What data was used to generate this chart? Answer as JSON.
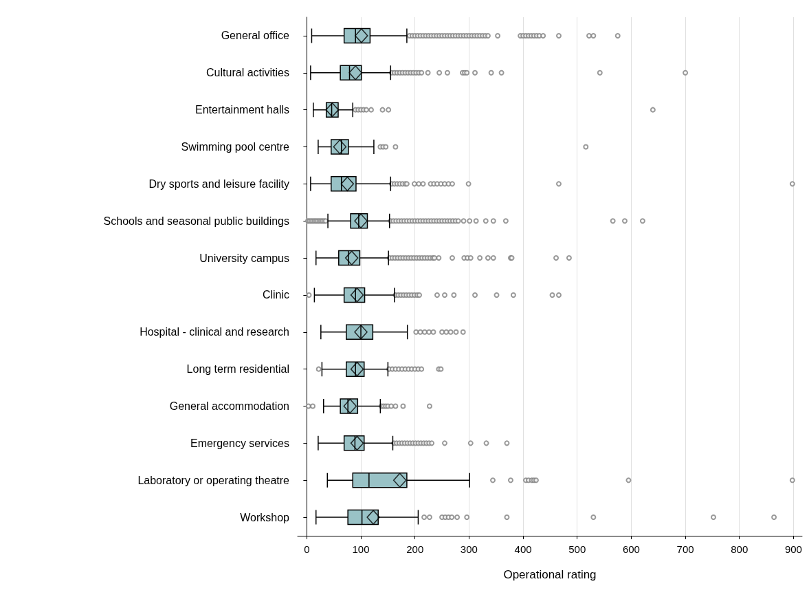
{
  "chart_data": {
    "type": "box",
    "orientation": "horizontal",
    "xlabel": "Operational rating",
    "color": "#99c2c6",
    "grid": "x",
    "xlim": [
      -17,
      916
    ],
    "xticks": [
      0,
      100,
      200,
      300,
      400,
      500,
      600,
      700,
      800,
      900
    ],
    "categories": [
      "General office",
      "Cultural activities",
      "Entertainment halls",
      "Swimming pool centre",
      "Dry sports and leisure facility",
      "Schools and seasonal public buildings",
      "University campus",
      "Clinic",
      "Hospital - clinical and research",
      "Long term residential",
      "General accommodation",
      "Emergency services",
      "Laboratory or operating theatre",
      "Workshop"
    ],
    "boxes": [
      {
        "low": 9,
        "q1": 69,
        "median": 90,
        "q3": 117,
        "high": 185,
        "mean": 101,
        "outliers": [
          190,
          195,
          200,
          205,
          210,
          215,
          220,
          225,
          230,
          235,
          240,
          245,
          250,
          255,
          260,
          265,
          270,
          275,
          280,
          285,
          290,
          295,
          300,
          305,
          310,
          315,
          320,
          325,
          330,
          335,
          353,
          395,
          400,
          405,
          410,
          415,
          420,
          425,
          430,
          437,
          466,
          522,
          530,
          575
        ]
      },
      {
        "low": 7,
        "q1": 62,
        "median": 79,
        "q3": 101,
        "high": 155,
        "mean": 90,
        "outliers": [
          157,
          162,
          167,
          172,
          177,
          182,
          187,
          192,
          197,
          202,
          207,
          212,
          224,
          245,
          260,
          288,
          292,
          296,
          311,
          341,
          360,
          542,
          700
        ]
      },
      {
        "low": 12,
        "q1": 36,
        "median": 46,
        "q3": 58,
        "high": 85,
        "mean": 47,
        "outliers": [
          90,
          95,
          100,
          105,
          110,
          119,
          140,
          151,
          640
        ]
      },
      {
        "low": 21,
        "q1": 45,
        "median": 64,
        "q3": 77,
        "high": 124,
        "mean": 61,
        "outliers": [
          136,
          141,
          146,
          164,
          516
        ]
      },
      {
        "low": 7,
        "q1": 45,
        "median": 64,
        "q3": 91,
        "high": 155,
        "mean": 75,
        "outliers": [
          157,
          162,
          167,
          172,
          177,
          182,
          185,
          199,
          207,
          215,
          229,
          235,
          241,
          248,
          255,
          262,
          269,
          299,
          466,
          898
        ]
      },
      {
        "low": 39,
        "q1": 81,
        "median": 96,
        "q3": 112,
        "high": 153,
        "mean": 100,
        "outliers": [
          2,
          5,
          8,
          11,
          14,
          17,
          20,
          23,
          26,
          29,
          32,
          35,
          155,
          160,
          165,
          170,
          175,
          180,
          185,
          190,
          195,
          200,
          205,
          210,
          215,
          220,
          225,
          230,
          235,
          240,
          245,
          250,
          255,
          260,
          265,
          270,
          275,
          280,
          290,
          301,
          313,
          331,
          345,
          368,
          566,
          588,
          621
        ]
      },
      {
        "low": 17,
        "q1": 59,
        "median": 77,
        "q3": 98,
        "high": 151,
        "mean": 83,
        "outliers": [
          153,
          158,
          163,
          168,
          173,
          178,
          183,
          188,
          193,
          198,
          203,
          208,
          213,
          218,
          223,
          228,
          233,
          236,
          244,
          269,
          291,
          297,
          303,
          320,
          335,
          345,
          377,
          379,
          461,
          485
        ]
      },
      {
        "low": 14,
        "q1": 69,
        "median": 90,
        "q3": 107,
        "high": 162,
        "mean": 93,
        "outliers": [
          4,
          164,
          169,
          174,
          179,
          184,
          189,
          194,
          199,
          204,
          208,
          241,
          255,
          272,
          311,
          351,
          382,
          454,
          466
        ]
      },
      {
        "low": 26,
        "q1": 73,
        "median": 100,
        "q3": 122,
        "high": 186,
        "mean": 100,
        "outliers": [
          202,
          210,
          218,
          226,
          234,
          250,
          258,
          266,
          276,
          289
        ]
      },
      {
        "low": 28,
        "q1": 73,
        "median": 90,
        "q3": 106,
        "high": 150,
        "mean": 93,
        "outliers": [
          22,
          152,
          158,
          164,
          170,
          176,
          182,
          188,
          194,
          200,
          206,
          212,
          244,
          248
        ]
      },
      {
        "low": 31,
        "q1": 62,
        "median": 76,
        "q3": 94,
        "high": 136,
        "mean": 80,
        "outliers": [
          3,
          11,
          138,
          142,
          146,
          150,
          156,
          164,
          178,
          227
        ]
      },
      {
        "low": 21,
        "q1": 69,
        "median": 89,
        "q3": 106,
        "high": 159,
        "mean": 93,
        "outliers": [
          161,
          166,
          171,
          176,
          181,
          186,
          191,
          196,
          201,
          206,
          211,
          216,
          221,
          226,
          231,
          255,
          303,
          332,
          370
        ]
      },
      {
        "low": 38,
        "q1": 85,
        "median": 115,
        "q3": 185,
        "high": 301,
        "mean": 172,
        "outliers": [
          344,
          377,
          405,
          410,
          416,
          420,
          424,
          595,
          898
        ]
      },
      {
        "low": 17,
        "q1": 76,
        "median": 102,
        "q3": 132,
        "high": 206,
        "mean": 123,
        "outliers": [
          217,
          227,
          250,
          256,
          262,
          268,
          278,
          296,
          370,
          530,
          752,
          864
        ]
      }
    ]
  }
}
